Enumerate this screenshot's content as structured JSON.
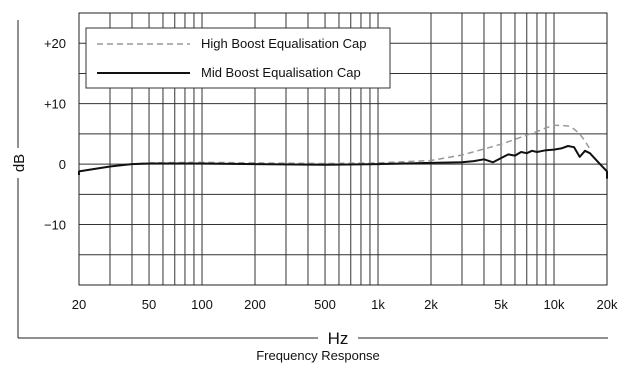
{
  "chart_data": {
    "type": "line",
    "title": "",
    "xlabel": "Hz",
    "ylabel": "dB",
    "caption": "Frequency Response",
    "x_scale": "log",
    "xlim": [
      20,
      20000
    ],
    "ylim": [
      -20,
      25
    ],
    "x_ticks": [
      20,
      50,
      100,
      200,
      500,
      1000,
      2000,
      5000,
      10000,
      20000
    ],
    "x_tick_labels": [
      "20",
      "50",
      "100",
      "200",
      "500",
      "1k",
      "2k",
      "5k",
      "10k",
      "20k"
    ],
    "y_ticks": [
      20,
      10,
      0,
      -10
    ],
    "y_tick_labels": [
      "+20",
      "+10",
      "0",
      "−10"
    ],
    "grid": true,
    "legend_position": "top-left",
    "series": [
      {
        "name": "High Boost Equalisation Cap",
        "style": "dashed",
        "color": "#999999",
        "x": [
          20,
          30,
          40,
          50,
          100,
          200,
          500,
          1000,
          2000,
          3000,
          4000,
          5000,
          6000,
          7000,
          8000,
          9000,
          10000,
          11000,
          12000,
          13000,
          14000,
          15000,
          16000
        ],
        "y": [
          -1.2,
          -0.4,
          0,
          0.2,
          0.3,
          0.2,
          0.1,
          0.2,
          0.6,
          1.5,
          2.5,
          3.3,
          4.1,
          4.8,
          5.4,
          6.0,
          6.4,
          6.4,
          6.3,
          5.8,
          5.0,
          3.8,
          2.5
        ]
      },
      {
        "name": "Mid Boost Equalisation Cap",
        "style": "solid",
        "color": "#111111",
        "x": [
          15,
          20,
          30,
          40,
          50,
          100,
          200,
          500,
          1000,
          2000,
          3000,
          3500,
          4000,
          4500,
          5000,
          5500,
          6000,
          6500,
          7000,
          7500,
          8000,
          9000,
          10000,
          11000,
          12000,
          13000,
          14000,
          15000,
          16000,
          18000,
          20000,
          22000
        ],
        "y": [
          -1.8,
          -1.2,
          -0.4,
          0,
          0.1,
          0.1,
          0,
          -0.1,
          0,
          0.2,
          0.3,
          0.5,
          0.8,
          0.3,
          1.0,
          1.6,
          1.4,
          2.0,
          1.8,
          2.2,
          2.0,
          2.3,
          2.4,
          2.6,
          3.0,
          2.8,
          1.2,
          2.2,
          1.8,
          0.2,
          -1.2,
          -2.4
        ]
      }
    ]
  }
}
